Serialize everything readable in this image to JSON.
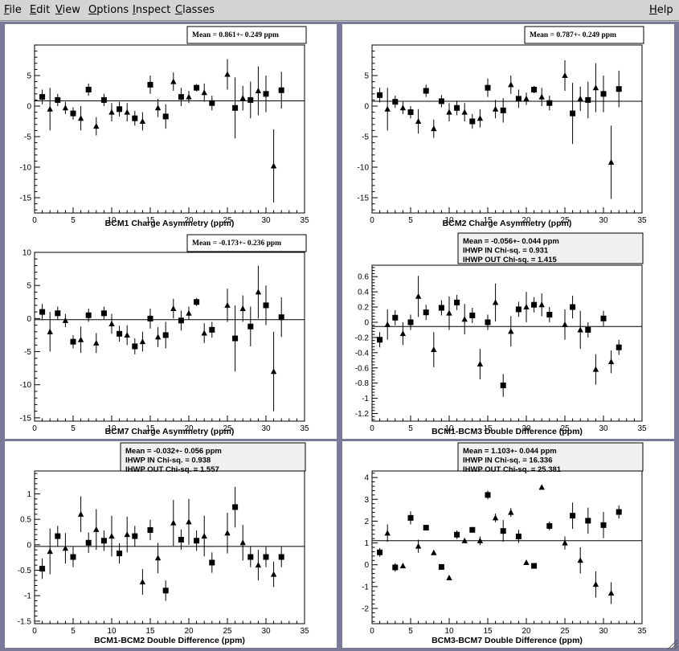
{
  "menu": {
    "items": [
      {
        "first": "F",
        "rest": "ile"
      },
      {
        "first": "E",
        "rest": "dit"
      },
      {
        "first": "V",
        "rest": "iew"
      },
      {
        "first": "O",
        "rest": "ptions"
      },
      {
        "first": "I",
        "rest": "nspect"
      },
      {
        "first": "C",
        "rest": "lasses"
      }
    ],
    "help": {
      "first": "H",
      "rest": "elp"
    }
  },
  "colors": {
    "canvas_bg": "#7a7a9a",
    "pad_bg": "#ffffff",
    "stats_bg": "#f0f0f0",
    "marker": "#000000"
  },
  "chart_data": [
    {
      "type": "scatter",
      "xlabel": "BCM1 Charge Asymmetry (ppm)",
      "xlim": [
        0,
        35
      ],
      "ylim": [
        -17.5,
        10
      ],
      "xticks": [
        0,
        5,
        10,
        15,
        20,
        25,
        30,
        35
      ],
      "yticks": [
        -15,
        -10,
        -5,
        0,
        5
      ],
      "stats": [
        "Mean = 0.861+- 0.249 ppm"
      ],
      "mean": 0.861,
      "series": [
        {
          "marker": "square",
          "x": [
            1,
            3,
            5,
            7,
            9,
            11,
            13,
            15,
            17,
            19,
            21,
            23,
            26,
            28,
            30,
            32
          ],
          "y": [
            1.5,
            1.0,
            -1.2,
            2.7,
            1.0,
            -0.5,
            -2.0,
            3.5,
            -1.7,
            1.5,
            3.0,
            0.5,
            -0.3,
            1.0,
            2.0,
            2.6
          ],
          "err": [
            1.2,
            1.0,
            1.0,
            1.0,
            1.0,
            1.2,
            1.2,
            1.5,
            2.0,
            1.5,
            0.6,
            1.2,
            5.0,
            3.0,
            3.0,
            3.0
          ]
        },
        {
          "marker": "triangle",
          "x": [
            2,
            4,
            6,
            8,
            10,
            12,
            14,
            16,
            18,
            20,
            22,
            25,
            27,
            29,
            31
          ],
          "y": [
            -0.5,
            -0.3,
            -2.0,
            -3.3,
            -1.0,
            -1.0,
            -2.5,
            -0.3,
            4.0,
            1.5,
            2.2,
            5.2,
            1.3,
            2.5,
            -9.8
          ],
          "err": [
            3.5,
            1.0,
            2.0,
            1.5,
            1.5,
            1.5,
            1.5,
            1.5,
            1.5,
            1.0,
            1.5,
            2.5,
            2.0,
            4.0,
            6.0
          ]
        }
      ]
    },
    {
      "type": "scatter",
      "xlabel": "BCM2 Charge Asymmetry (ppm)",
      "xlim": [
        0,
        35
      ],
      "ylim": [
        -17.5,
        10
      ],
      "xticks": [
        0,
        5,
        10,
        15,
        20,
        25,
        30,
        35
      ],
      "yticks": [
        -15,
        -10,
        -5,
        0,
        5
      ],
      "stats": [
        "Mean = 0.787+- 0.249 ppm"
      ],
      "mean": 0.787,
      "series": [
        {
          "marker": "square",
          "x": [
            1,
            3,
            5,
            7,
            9,
            11,
            13,
            15,
            17,
            19,
            21,
            23,
            26,
            28,
            30,
            32
          ],
          "y": [
            1.8,
            0.7,
            -1.0,
            2.5,
            0.8,
            -0.3,
            -2.5,
            3.0,
            -0.7,
            1.2,
            2.7,
            0.5,
            -1.2,
            1.0,
            2.0,
            2.8
          ],
          "err": [
            1.2,
            1.0,
            1.0,
            1.0,
            1.0,
            1.2,
            1.2,
            1.5,
            2.0,
            1.5,
            0.6,
            1.2,
            5.0,
            3.0,
            3.0,
            3.0
          ]
        },
        {
          "marker": "triangle",
          "x": [
            2,
            4,
            6,
            8,
            10,
            12,
            14,
            16,
            18,
            20,
            22,
            25,
            27,
            29,
            31
          ],
          "y": [
            -0.5,
            -0.3,
            -2.5,
            -3.7,
            -1.0,
            -1.0,
            -2.0,
            -0.5,
            3.5,
            1.2,
            1.5,
            5.0,
            1.2,
            3.0,
            -9.2
          ],
          "err": [
            3.5,
            1.0,
            2.0,
            1.5,
            1.5,
            1.5,
            1.5,
            1.5,
            1.5,
            1.0,
            1.5,
            2.5,
            2.0,
            4.0,
            6.0
          ]
        }
      ]
    },
    {
      "type": "scatter",
      "xlabel": "BCM7 Charge Asymmetry (ppm)",
      "xlim": [
        0,
        35
      ],
      "ylim": [
        -15.5,
        10
      ],
      "xticks": [
        0,
        5,
        10,
        15,
        20,
        25,
        30,
        35
      ],
      "yticks": [
        -15,
        -10,
        -5,
        0,
        5,
        10
      ],
      "stats": [
        "Mean = -0.173+- 0.236 ppm"
      ],
      "mean": -0.173,
      "series": [
        {
          "marker": "square",
          "x": [
            1,
            3,
            5,
            7,
            9,
            11,
            13,
            15,
            17,
            19,
            21,
            23,
            26,
            28,
            30,
            32
          ],
          "y": [
            1.0,
            0.8,
            -3.5,
            0.5,
            0.8,
            -2.3,
            -4.2,
            0.0,
            -2.5,
            -0.3,
            2.5,
            -1.7,
            -3.0,
            -1.2,
            2.0,
            0.2
          ],
          "err": [
            1.2,
            1.0,
            1.0,
            1.0,
            1.0,
            1.2,
            1.2,
            1.5,
            2.0,
            1.5,
            0.6,
            1.2,
            5.0,
            3.0,
            3.0,
            3.0
          ]
        },
        {
          "marker": "triangle",
          "x": [
            2,
            4,
            6,
            8,
            10,
            12,
            14,
            16,
            18,
            20,
            22,
            25,
            27,
            29,
            31
          ],
          "y": [
            -2.0,
            -0.3,
            -3.2,
            -3.7,
            -0.8,
            -2.5,
            -3.5,
            -2.8,
            1.5,
            0.8,
            -2.2,
            2.0,
            1.5,
            4.0,
            -8.0
          ],
          "err": [
            3.0,
            1.0,
            2.0,
            1.5,
            1.5,
            1.5,
            1.5,
            1.5,
            1.5,
            1.0,
            1.5,
            2.5,
            2.0,
            4.0,
            6.0
          ]
        }
      ]
    },
    {
      "type": "scatter",
      "xlabel": "BCM1-BCM3 Double Difference (ppm)",
      "xlim": [
        0,
        35
      ],
      "ylim": [
        -1.3,
        0.75
      ],
      "xticks": [
        0,
        5,
        10,
        15,
        20,
        25,
        30,
        35
      ],
      "yticks": [
        -1.2,
        -1,
        -0.8,
        -0.6,
        -0.4,
        -0.2,
        0,
        0.2,
        0.4,
        0.6
      ],
      "stats": [
        "Mean = -0.056+- 0.044 ppm",
        "IHWP IN Chi-sq. = 0.931",
        "IHWP OUT Chi-sq. = 1.415"
      ],
      "mean": -0.056,
      "series": [
        {
          "marker": "square",
          "x": [
            1,
            3,
            5,
            7,
            9,
            11,
            13,
            15,
            17,
            19,
            21,
            23,
            26,
            28,
            30,
            32
          ],
          "y": [
            -0.23,
            0.06,
            0.0,
            0.13,
            0.19,
            0.26,
            0.09,
            0.0,
            -0.83,
            0.17,
            0.23,
            0.1,
            0.2,
            -0.1,
            0.05,
            -0.33
          ],
          "err": [
            0.1,
            0.1,
            0.1,
            0.1,
            0.1,
            0.1,
            0.1,
            0.1,
            0.15,
            0.1,
            0.1,
            0.1,
            0.15,
            0.1,
            0.1,
            0.1
          ]
        },
        {
          "marker": "triangle",
          "x": [
            2,
            4,
            6,
            8,
            10,
            12,
            14,
            16,
            18,
            20,
            22,
            25,
            27,
            29,
            31
          ],
          "y": [
            -0.03,
            -0.15,
            0.34,
            -0.36,
            0.12,
            0.04,
            -0.55,
            0.26,
            -0.12,
            0.2,
            0.23,
            -0.03,
            -0.1,
            -0.62,
            -0.52
          ],
          "err": [
            0.2,
            0.15,
            0.27,
            0.23,
            0.22,
            0.2,
            0.2,
            0.25,
            0.2,
            0.2,
            0.15,
            0.2,
            0.25,
            0.2,
            0.15
          ]
        }
      ]
    },
    {
      "type": "scatter",
      "xlabel": "BCM1-BCM2 Double Difference (ppm)",
      "xlim": [
        0,
        35
      ],
      "ylim": [
        -1.55,
        1.45
      ],
      "xticks": [
        0,
        5,
        10,
        15,
        20,
        25,
        30,
        35
      ],
      "yticks": [
        -1.5,
        -1,
        -0.5,
        0,
        0.5,
        1
      ],
      "stats": [
        "Mean = -0.032+- 0.056 ppm",
        "IHWP IN Chi-sq. = 0.938",
        "IHWP OUT Chi-sq. = 1.557"
      ],
      "mean": -0.032,
      "series": [
        {
          "marker": "square",
          "x": [
            1,
            3,
            5,
            7,
            9,
            11,
            13,
            15,
            17,
            19,
            21,
            23,
            26,
            28,
            30,
            32
          ],
          "y": [
            -0.47,
            0.17,
            -0.24,
            0.04,
            0.08,
            -0.17,
            0.17,
            0.29,
            -0.9,
            0.1,
            0.08,
            -0.35,
            0.74,
            -0.24,
            -0.24,
            -0.24
          ],
          "err": [
            0.2,
            0.2,
            0.2,
            0.2,
            0.2,
            0.2,
            0.2,
            0.2,
            0.2,
            0.2,
            0.2,
            0.2,
            0.4,
            0.2,
            0.2,
            0.2
          ]
        },
        {
          "marker": "triangle",
          "x": [
            2,
            4,
            6,
            8,
            10,
            12,
            14,
            16,
            18,
            20,
            22,
            25,
            27,
            29,
            31
          ],
          "y": [
            -0.13,
            -0.07,
            0.6,
            0.3,
            0.17,
            0.2,
            -0.73,
            -0.26,
            0.43,
            0.45,
            0.17,
            0.23,
            0.04,
            -0.4,
            -0.58
          ],
          "err": [
            0.45,
            0.3,
            0.35,
            0.4,
            0.4,
            0.35,
            0.25,
            0.3,
            0.45,
            0.45,
            0.4,
            0.4,
            0.35,
            0.3,
            0.25
          ]
        }
      ]
    },
    {
      "type": "scatter",
      "xlabel": "BCM3-BCM7 Double Difference (ppm)",
      "xlim": [
        0,
        35
      ],
      "ylim": [
        -2.7,
        4.3
      ],
      "xticks": [
        0,
        5,
        10,
        15,
        20,
        25,
        30,
        35
      ],
      "yticks": [
        -2,
        -1,
        0,
        1,
        2,
        3,
        4
      ],
      "stats": [
        "Mean = 1.103+- 0.044 ppm",
        "IHWP IN Chi-sq. = 16.336",
        "IHWP OUT Chi-sq. = 25.381"
      ],
      "mean": 1.103,
      "series": [
        {
          "marker": "square",
          "x": [
            1,
            3,
            5,
            7,
            9,
            11,
            13,
            15,
            17,
            19,
            21,
            23,
            26,
            28,
            30,
            32
          ],
          "y": [
            0.57,
            -0.12,
            2.15,
            1.7,
            -0.1,
            1.38,
            1.6,
            3.2,
            1.55,
            1.3,
            -0.05,
            1.78,
            2.25,
            2.02,
            1.82,
            2.42
          ],
          "err": [
            0.2,
            0.2,
            0.3,
            0.1,
            0.1,
            0.2,
            0.1,
            0.2,
            0.5,
            0.3,
            0.1,
            0.2,
            0.6,
            0.6,
            0.6,
            0.3
          ]
        },
        {
          "marker": "triangle",
          "x": [
            2,
            4,
            6,
            8,
            10,
            12,
            14,
            16,
            18,
            20,
            22,
            25,
            27,
            29,
            31
          ],
          "y": [
            1.45,
            -0.05,
            0.85,
            0.55,
            -0.6,
            1.1,
            1.1,
            2.15,
            2.4,
            0.1,
            3.55,
            1.0,
            0.2,
            -0.9,
            -1.3
          ],
          "err": [
            0.4,
            0.1,
            0.3,
            0.1,
            0.1,
            0.1,
            0.2,
            0.2,
            0.2,
            0.1,
            0.1,
            0.3,
            0.6,
            0.6,
            0.5
          ]
        }
      ]
    }
  ]
}
